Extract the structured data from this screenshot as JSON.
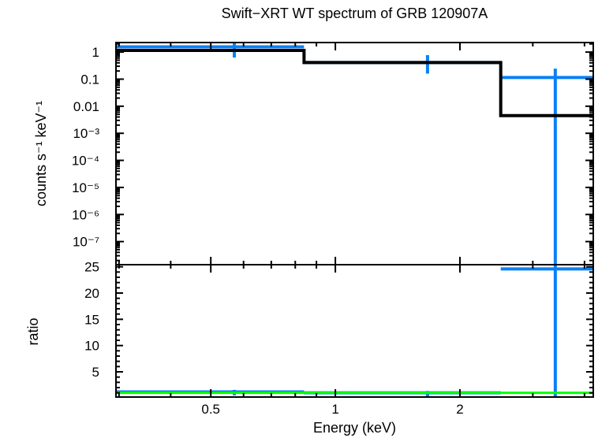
{
  "chart_data": {
    "type": "line",
    "title": "Swift−XRT WT spectrum of GRB 120907A",
    "xlabel": "Energy (keV)",
    "xscale": "log",
    "xlim": [
      0.295,
      4.2
    ],
    "x_ticks": {
      "major": [
        0.5,
        1,
        2
      ],
      "major_labels": [
        "0.5",
        "1",
        "2"
      ],
      "minor": [
        0.3,
        0.4,
        0.6,
        0.7,
        0.8,
        0.9,
        3,
        4
      ]
    },
    "colors": {
      "data": "#0a80f5",
      "model": "#000000",
      "unity": "#00ff00",
      "axis": "#000000",
      "background": "#ffffff"
    },
    "panels": [
      {
        "name": "spectrum",
        "ylabel": "counts s⁻¹ keV⁻¹",
        "yscale": "log",
        "ylim": [
          1.4e-08,
          2.25
        ],
        "y_ticks": {
          "major": [
            1,
            0.1,
            0.01,
            0.001,
            0.0001,
            1e-05,
            1e-06,
            1e-07
          ],
          "major_labels": [
            "1",
            "0.1",
            "0.01",
            "10⁻³",
            "10⁻⁴",
            "10⁻⁵",
            "10⁻⁶",
            "10⁻⁷"
          ]
        },
        "model_histogram": [
          {
            "e_lo": 0.295,
            "e_hi": 0.84,
            "value": 1.15
          },
          {
            "e_lo": 0.84,
            "e_hi": 2.51,
            "value": 0.41
          },
          {
            "e_lo": 2.51,
            "e_hi": 4.2,
            "value": 0.0045
          }
        ],
        "data_points": [
          {
            "e": 0.57,
            "e_lo": 0.295,
            "e_hi": 0.84,
            "value": 1.55,
            "err_lo": 0.63,
            "err_hi": 2.1
          },
          {
            "e": 1.67,
            "e_lo": 0.84,
            "e_hi": 2.51,
            "value": 0.41,
            "err_lo": 0.16,
            "err_hi": 0.77
          },
          {
            "e": 3.4,
            "e_lo": 2.51,
            "e_hi": 4.2,
            "value": 0.115,
            "err_lo": 1e-09,
            "err_hi": 0.245
          }
        ]
      },
      {
        "name": "ratio",
        "ylabel": "ratio",
        "yscale": "linear",
        "ylim": [
          0.2,
          25.4
        ],
        "y_ticks": {
          "major": [
            5,
            10,
            15,
            20,
            25
          ],
          "major_labels": [
            "5",
            "10",
            "15",
            "20",
            "25"
          ],
          "minor_step": 1
        },
        "unity_line": 1,
        "data_points": [
          {
            "e": 0.57,
            "e_lo": 0.295,
            "e_hi": 0.84,
            "value": 1.18,
            "err_lo": 0.51,
            "err_hi": 1.56
          },
          {
            "e": 1.67,
            "e_lo": 0.84,
            "e_hi": 2.51,
            "value": 1.0,
            "err_lo": 0.05,
            "err_hi": 1.35
          },
          {
            "e": 3.4,
            "e_lo": 2.51,
            "e_hi": 4.2,
            "value": 24.6,
            "err_lo": 0.05,
            "err_hi": 30
          }
        ]
      }
    ]
  }
}
